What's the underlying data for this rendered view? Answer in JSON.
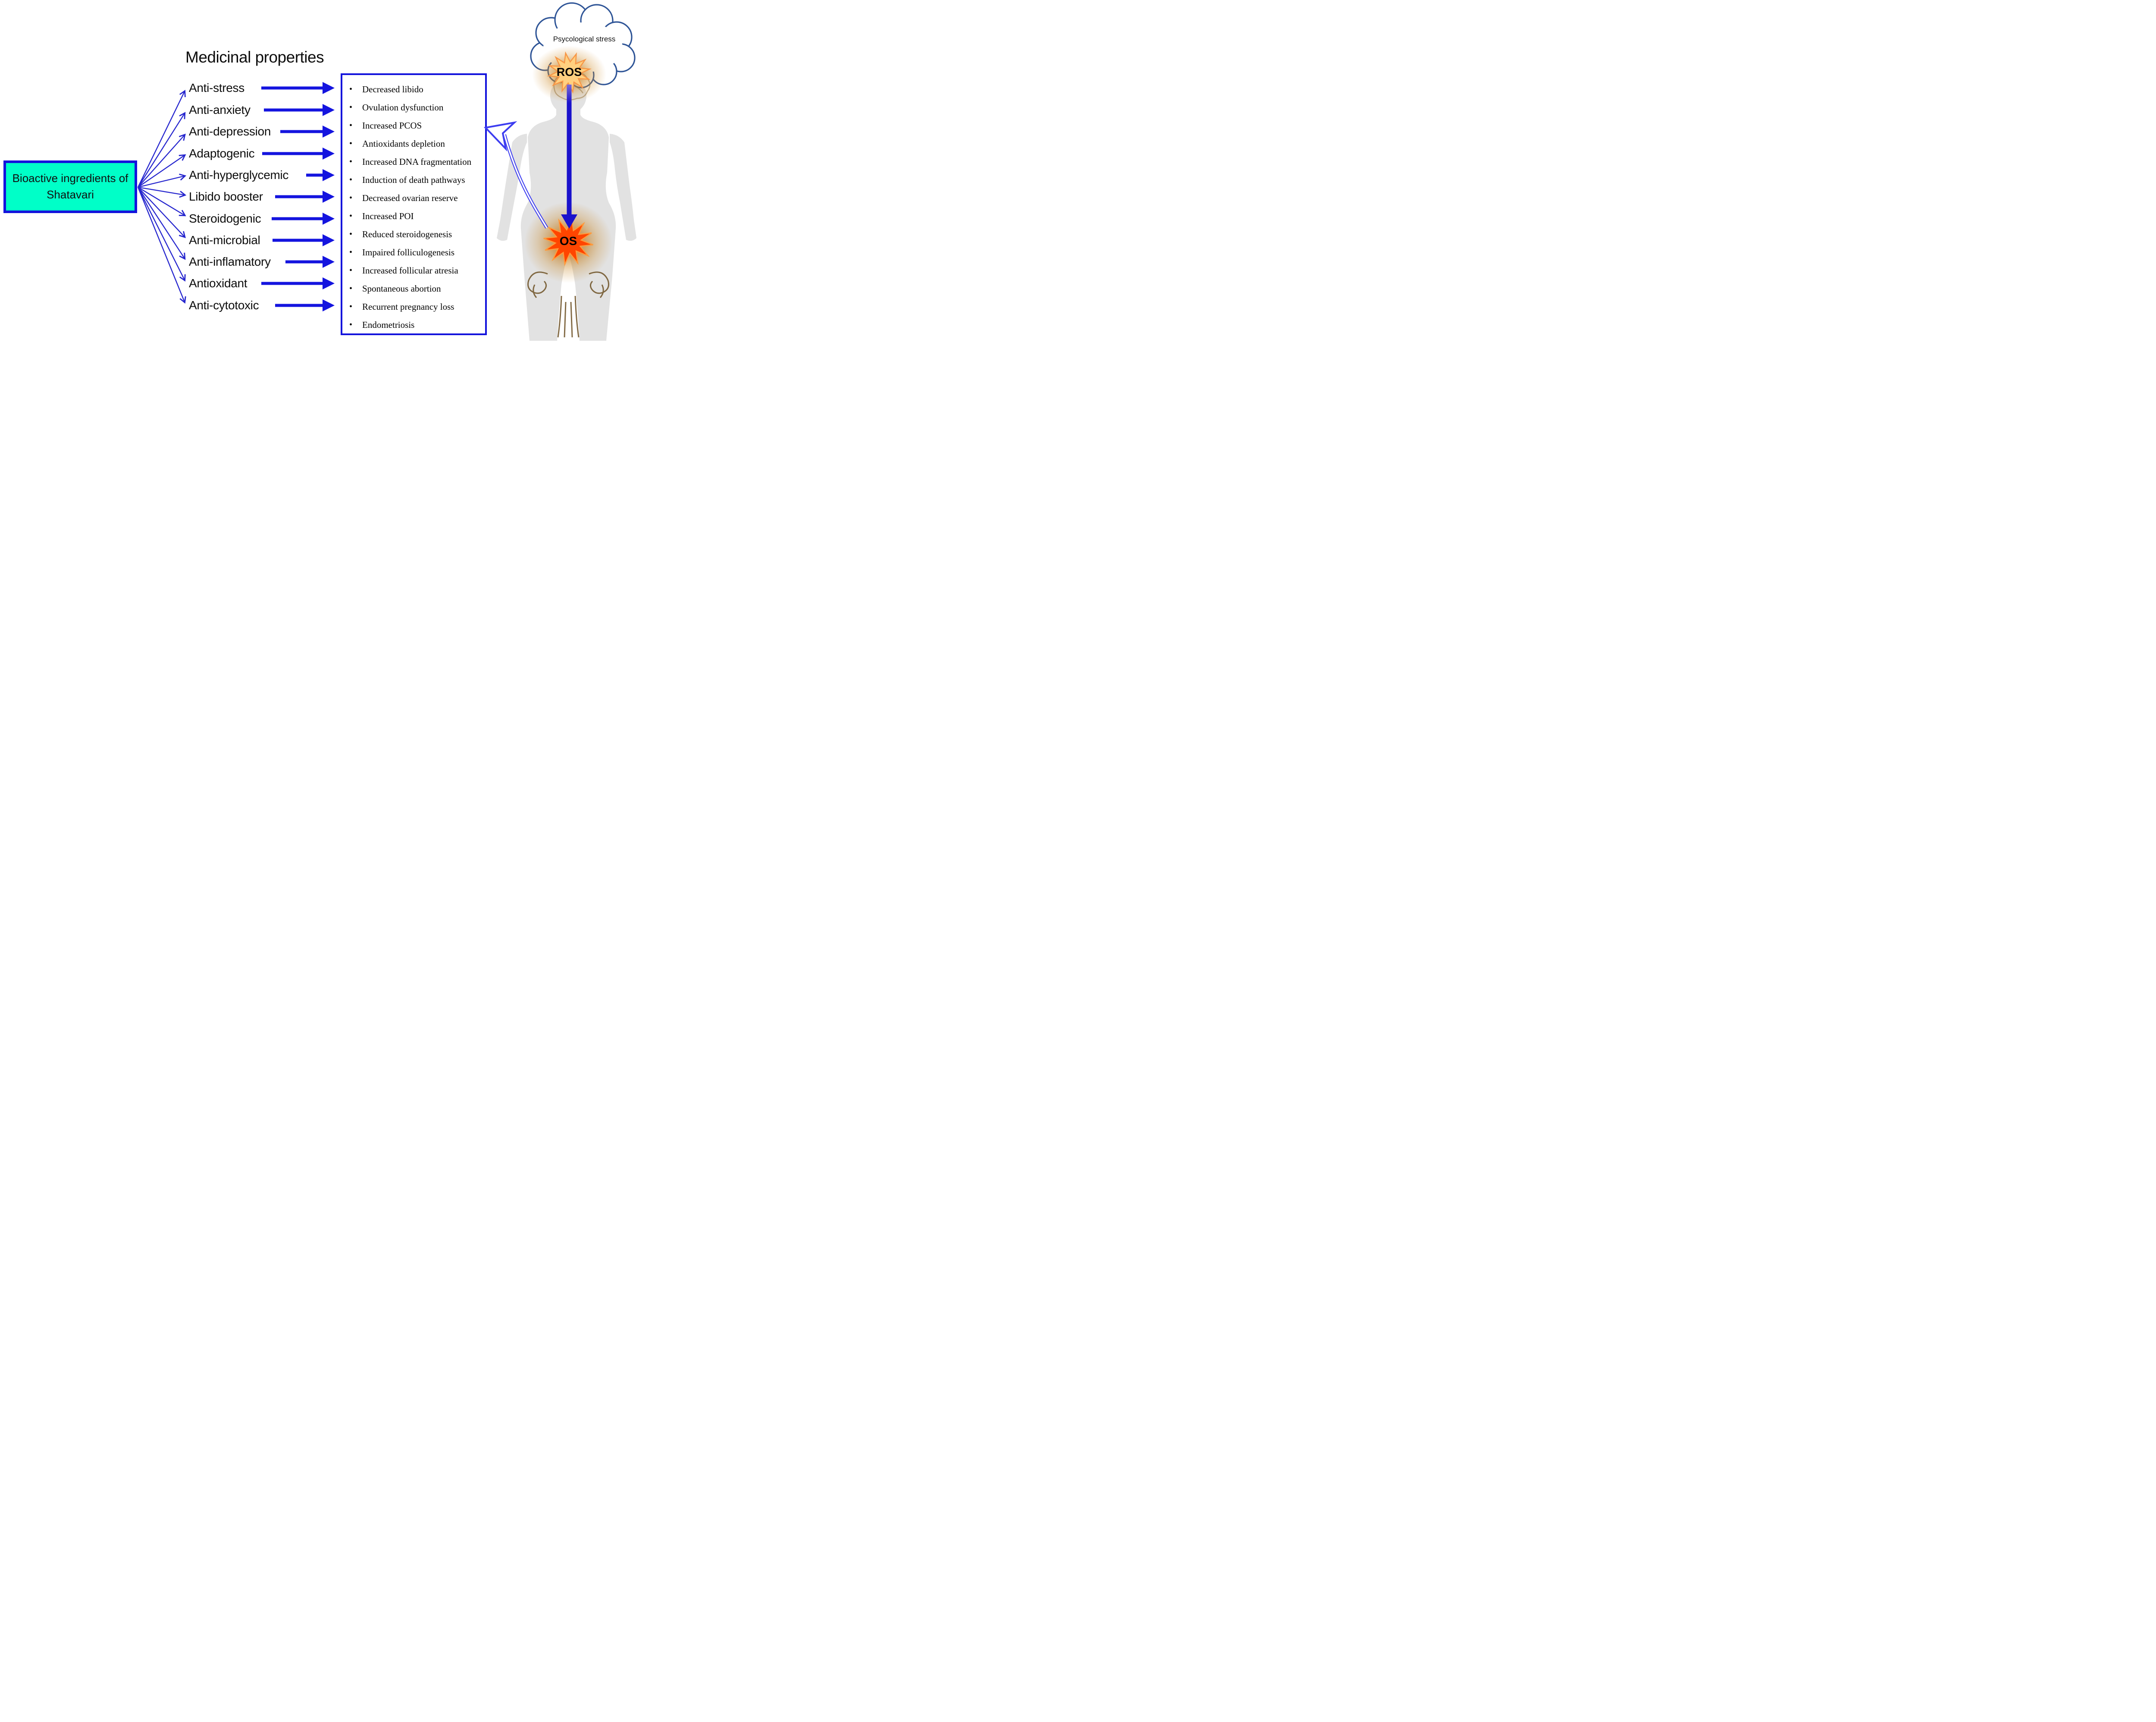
{
  "title": "Medicinal properties",
  "source": {
    "label": "Bioactive ingredients of Shatavari"
  },
  "properties": [
    "Anti-stress",
    "Anti-anxiety",
    "Anti-depression",
    "Adaptogenic",
    "Anti-hyperglycemic",
    "Libido booster",
    "Steroidogenic",
    "Anti-microbial",
    "Anti-inflamatory",
    "Antioxidant",
    "Anti-cytotoxic"
  ],
  "effects": [
    "Decreased libido",
    "Ovulation dysfunction",
    "Increased PCOS",
    "Antioxidants depletion",
    "Increased DNA fragmentation",
    "Induction of death pathways",
    "Decreased ovarian  reserve",
    "Increased POI",
    "Reduced steroidogenesis",
    "Impaired folliculogenesis",
    "Increased follicular atresia",
    "Spontaneous  abortion",
    "Recurrent pregnancy loss",
    "Endometriosis"
  ],
  "body_figure": {
    "cloud_text": "Psycological stress",
    "ros_label": "ROS",
    "os_label": "OS"
  },
  "colors": {
    "accent_blue": "#1414dc",
    "thin_arrow_blue": "#2626ce",
    "source_box_fill": "#00ffc8",
    "cloud_stroke": "#2f5597",
    "ros_star_fill": "#ffd080",
    "ros_star_stroke": "#f79646",
    "os_star_fill": "#ff4500",
    "os_star_stroke": "#ff9a3c",
    "glow_orange": "#c8821e",
    "silhouette_gray": "#e2e2e2",
    "sketch_brown": "#6e5226"
  }
}
